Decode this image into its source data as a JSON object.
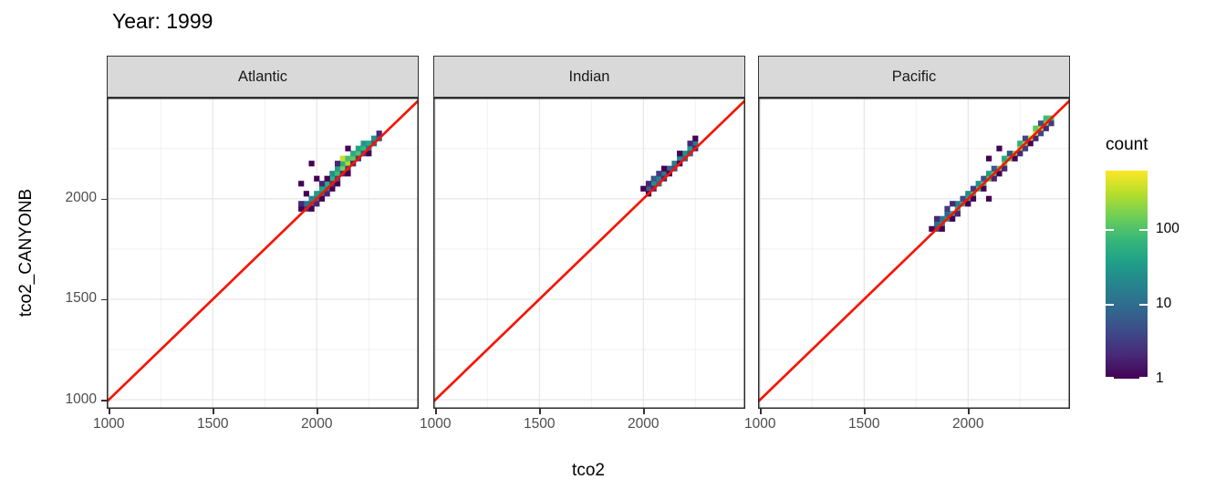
{
  "title": "Year: 1999",
  "axes": {
    "x_title": "tco2",
    "y_title": "tco2_CANYONB",
    "x_ticks": [
      1000,
      1500,
      2000
    ],
    "y_ticks": [
      1000,
      1500,
      2000
    ],
    "x_minor": [
      1250,
      1750,
      2250
    ],
    "y_minor": [
      1250,
      1750,
      2250
    ],
    "x_domain": [
      990,
      2490
    ],
    "y_domain": [
      955,
      2503
    ]
  },
  "legend": {
    "title": "count",
    "ticks": [
      100,
      10,
      1
    ],
    "scale_max": 600
  },
  "style": {
    "ref_line_color": "#f51505",
    "grid_major": "#e3e3e3",
    "grid_minor": "#f1f1f1",
    "panel_border": "#2b2b2b",
    "strip_fill": "#d9d9d9",
    "viridis_stops": [
      "#440154",
      "#482878",
      "#3e4989",
      "#31688e",
      "#26828e",
      "#1f9e89",
      "#35b779",
      "#6ece58",
      "#b5de2b",
      "#fde725"
    ]
  },
  "chart_data": {
    "type": "heatmap",
    "subtype": "bin2d",
    "title": "Year: 1999",
    "xlabel": "tco2",
    "ylabel": "tco2_CANYONB",
    "facet_variable": "ocean basin",
    "bin_size": 25,
    "color_scale": {
      "palette": "viridis",
      "transform": "log10",
      "title": "count",
      "ticks": [
        1,
        10,
        100
      ],
      "range": [
        1,
        600
      ]
    },
    "reference_line": {
      "type": "identity",
      "equation": "y = x",
      "color": "#f51505"
    },
    "xlim": [
      990,
      2490
    ],
    "ylim": [
      955,
      2503
    ],
    "grid": true,
    "legend_position": "right",
    "facets": [
      {
        "name": "Atlantic",
        "bins": [
          [
            1950,
            1950,
            3
          ],
          [
            1950,
            1975,
            12
          ],
          [
            1975,
            1975,
            8
          ],
          [
            1975,
            2000,
            20
          ],
          [
            2000,
            2000,
            15
          ],
          [
            2000,
            2025,
            30
          ],
          [
            2025,
            2025,
            20
          ],
          [
            2025,
            2050,
            40
          ],
          [
            2050,
            2050,
            25
          ],
          [
            2050,
            2075,
            50
          ],
          [
            2075,
            2100,
            60
          ],
          [
            2075,
            2125,
            25
          ],
          [
            2100,
            2125,
            80
          ],
          [
            2100,
            2150,
            35
          ],
          [
            2125,
            2150,
            150
          ],
          [
            2125,
            2175,
            60
          ],
          [
            2125,
            2200,
            350
          ],
          [
            2150,
            2175,
            250
          ],
          [
            2150,
            2200,
            90
          ],
          [
            2175,
            2200,
            120
          ],
          [
            2175,
            2225,
            50
          ],
          [
            2200,
            2225,
            100
          ],
          [
            2200,
            2250,
            40
          ],
          [
            2225,
            2250,
            70
          ],
          [
            2225,
            2275,
            30
          ],
          [
            2250,
            2275,
            45
          ],
          [
            2275,
            2300,
            25
          ],
          [
            2250,
            2250,
            10
          ],
          [
            2275,
            2275,
            8
          ],
          [
            1925,
            1950,
            1
          ],
          [
            1925,
            1975,
            2
          ],
          [
            1950,
            2025,
            1
          ],
          [
            1975,
            1950,
            1
          ],
          [
            2000,
            1975,
            2
          ],
          [
            2025,
            2000,
            1
          ],
          [
            2050,
            2025,
            2
          ],
          [
            2075,
            2050,
            1
          ],
          [
            2075,
            2075,
            3
          ],
          [
            2100,
            2075,
            1
          ],
          [
            2100,
            2100,
            4
          ],
          [
            2125,
            2125,
            2
          ],
          [
            2150,
            2150,
            3
          ],
          [
            2175,
            2175,
            2
          ],
          [
            2150,
            2125,
            1
          ],
          [
            2200,
            2200,
            3
          ],
          [
            2225,
            2225,
            4
          ],
          [
            2250,
            2225,
            1
          ],
          [
            2300,
            2300,
            6
          ],
          [
            2300,
            2325,
            2
          ],
          [
            2025,
            2075,
            2
          ],
          [
            2050,
            2100,
            1
          ],
          [
            1925,
            2075,
            1
          ],
          [
            1975,
            2175,
            1
          ],
          [
            2000,
            2100,
            1
          ],
          [
            2150,
            2250,
            1
          ],
          [
            2100,
            2175,
            2
          ]
        ]
      },
      {
        "name": "Indian",
        "bins": [
          [
            2025,
            2050,
            8
          ],
          [
            2050,
            2075,
            25
          ],
          [
            2050,
            2100,
            6
          ],
          [
            2075,
            2100,
            15
          ],
          [
            2075,
            2075,
            10
          ],
          [
            2100,
            2125,
            12
          ],
          [
            2125,
            2150,
            8
          ],
          [
            2150,
            2175,
            15
          ],
          [
            2150,
            2150,
            5
          ],
          [
            2175,
            2200,
            18
          ],
          [
            2200,
            2225,
            25
          ],
          [
            2200,
            2200,
            8
          ],
          [
            2225,
            2250,
            30
          ],
          [
            2250,
            2275,
            12
          ],
          [
            2225,
            2225,
            6
          ],
          [
            2025,
            2025,
            1
          ],
          [
            2050,
            2050,
            2
          ],
          [
            2100,
            2100,
            2
          ],
          [
            2125,
            2125,
            1
          ],
          [
            2175,
            2175,
            1
          ],
          [
            2250,
            2250,
            2
          ],
          [
            2025,
            2075,
            2
          ],
          [
            2100,
            2150,
            1
          ],
          [
            2175,
            2225,
            1
          ],
          [
            2250,
            2300,
            1
          ],
          [
            2000,
            2050,
            1
          ],
          [
            2075,
            2125,
            3
          ],
          [
            2225,
            2275,
            2
          ]
        ]
      },
      {
        "name": "Pacific",
        "bins": [
          [
            1850,
            1850,
            5
          ],
          [
            1850,
            1875,
            10
          ],
          [
            1875,
            1875,
            20
          ],
          [
            1875,
            1900,
            12
          ],
          [
            1900,
            1900,
            30
          ],
          [
            1900,
            1925,
            8
          ],
          [
            1925,
            1925,
            40
          ],
          [
            1950,
            1950,
            50
          ],
          [
            1950,
            1975,
            15
          ],
          [
            1975,
            1975,
            60
          ],
          [
            2000,
            2000,
            70
          ],
          [
            2000,
            2025,
            20
          ],
          [
            2025,
            2025,
            80
          ],
          [
            2050,
            2050,
            90
          ],
          [
            2050,
            2075,
            25
          ],
          [
            2075,
            2075,
            100
          ],
          [
            2100,
            2100,
            110
          ],
          [
            2100,
            2125,
            35
          ],
          [
            2125,
            2125,
            120
          ],
          [
            2150,
            2150,
            130
          ],
          [
            2175,
            2175,
            140
          ],
          [
            2175,
            2200,
            45
          ],
          [
            2200,
            2200,
            160
          ],
          [
            2225,
            2225,
            180
          ],
          [
            2250,
            2250,
            200
          ],
          [
            2250,
            2275,
            60
          ],
          [
            2275,
            2275,
            240
          ],
          [
            2300,
            2300,
            300
          ],
          [
            2325,
            2325,
            400
          ],
          [
            2325,
            2350,
            120
          ],
          [
            2350,
            2350,
            320
          ],
          [
            2375,
            2375,
            200
          ],
          [
            2375,
            2400,
            80
          ],
          [
            2400,
            2400,
            100
          ],
          [
            1825,
            1850,
            1
          ],
          [
            1850,
            1900,
            2
          ],
          [
            1875,
            1850,
            1
          ],
          [
            1900,
            1950,
            3
          ],
          [
            1925,
            1900,
            1
          ],
          [
            1950,
            1925,
            2
          ],
          [
            1975,
            2000,
            4
          ],
          [
            2000,
            1975,
            1
          ],
          [
            2025,
            2050,
            3
          ],
          [
            2075,
            2100,
            5
          ],
          [
            2075,
            2050,
            1
          ],
          [
            2125,
            2100,
            2
          ],
          [
            2125,
            2150,
            6
          ],
          [
            2150,
            2125,
            1
          ],
          [
            2175,
            2150,
            2
          ],
          [
            2200,
            2225,
            5
          ],
          [
            2225,
            2200,
            1
          ],
          [
            2250,
            2225,
            2
          ],
          [
            2275,
            2300,
            4
          ],
          [
            2300,
            2275,
            1
          ],
          [
            2325,
            2300,
            2
          ],
          [
            2350,
            2375,
            5
          ],
          [
            2375,
            2350,
            2
          ],
          [
            2400,
            2375,
            3
          ],
          [
            2100,
            2200,
            1
          ],
          [
            2150,
            2250,
            1
          ],
          [
            2100,
            2000,
            1
          ],
          [
            1925,
            1975,
            2
          ],
          [
            2275,
            2250,
            3
          ],
          [
            2350,
            2325,
            4
          ],
          [
            2025,
            2000,
            1
          ]
        ]
      }
    ]
  },
  "layout_note": "three facet panels sharing axes"
}
